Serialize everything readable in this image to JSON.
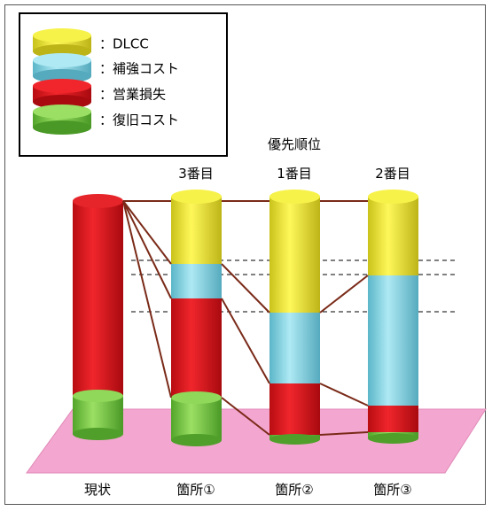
{
  "legend": {
    "items": [
      {
        "label": "：DLCC",
        "color": "#f2ec2b"
      },
      {
        "label": "：補強コスト",
        "color": "#7fd3e3"
      },
      {
        "label": "：営業損失",
        "color": "#e0151b"
      },
      {
        "label": "：復旧コスト",
        "color": "#78c841"
      }
    ]
  },
  "priority": {
    "title": "優先順位",
    "ranks": [
      "3番目",
      "1番目",
      "2番目"
    ]
  },
  "columns": [
    {
      "label": "現状"
    },
    {
      "label": "箇所①"
    },
    {
      "label": "箇所②"
    },
    {
      "label": "箇所③"
    }
  ],
  "colors": {
    "dlcc": "#f2ec2b",
    "reinforce": "#7fd3e3",
    "loss": "#e0151b",
    "recovery": "#78c841",
    "floor": "#f3a6cf",
    "connector": "#7a2a18"
  }
}
